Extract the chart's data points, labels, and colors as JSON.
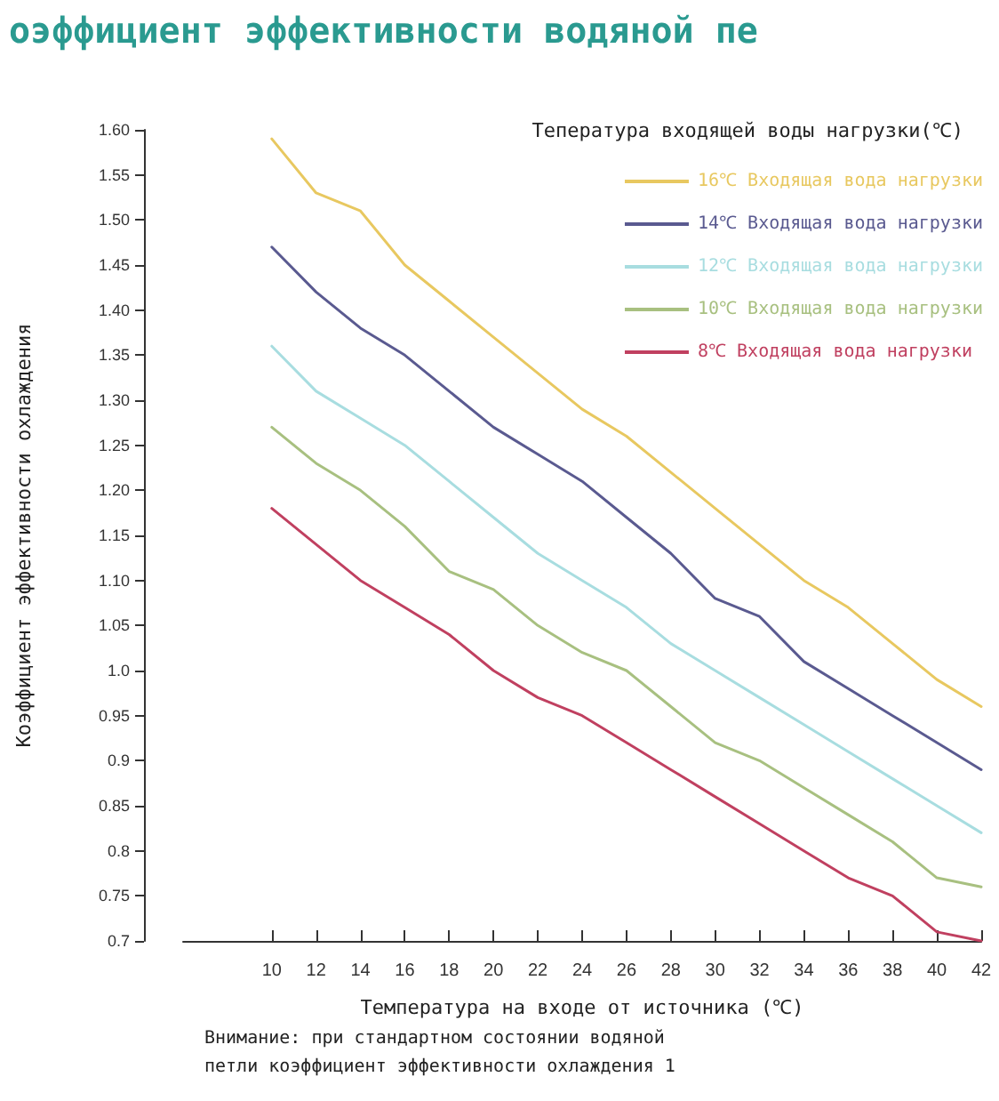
{
  "chart_data": {
    "type": "line",
    "title": "оэффициент эффективности водяной пе",
    "xlabel": "Температура на входе от источника (℃)",
    "ylabel": "Коэффициент эффективности охлаждения",
    "legend_title": "Тепература входящей воды нагрузки(℃)",
    "annotations": [
      "Внимание: при стандартном состоянии водяной петли коэффициент эффективности охлаждения 1"
    ],
    "x": [
      10,
      12,
      14,
      16,
      18,
      20,
      22,
      24,
      26,
      28,
      30,
      32,
      34,
      36,
      38,
      40,
      42
    ],
    "series": [
      {
        "name": "16℃ Входящая вода нагрузки",
        "color": "#e8c860",
        "values": [
          1.59,
          1.53,
          1.51,
          1.45,
          1.41,
          1.37,
          1.33,
          1.29,
          1.26,
          1.22,
          1.18,
          1.14,
          1.1,
          1.07,
          1.03,
          0.99,
          0.96
        ]
      },
      {
        "name": "14℃ Входящая вода нагрузки",
        "color": "#5a5a90",
        "values": [
          1.47,
          1.42,
          1.38,
          1.35,
          1.31,
          1.27,
          1.24,
          1.21,
          1.17,
          1.13,
          1.08,
          1.06,
          1.01,
          0.98,
          0.95,
          0.92,
          0.89
        ]
      },
      {
        "name": "12℃ Входящая вода нагрузки",
        "color": "#a8dde0",
        "values": [
          1.36,
          1.31,
          1.28,
          1.25,
          1.21,
          1.17,
          1.13,
          1.1,
          1.07,
          1.03,
          1.0,
          0.97,
          0.94,
          0.91,
          0.88,
          0.85,
          0.82
        ]
      },
      {
        "name": "10℃ Входящая вода нагрузки",
        "color": "#a8c080",
        "values": [
          1.27,
          1.23,
          1.2,
          1.16,
          1.11,
          1.09,
          1.05,
          1.02,
          1.0,
          0.96,
          0.92,
          0.9,
          0.87,
          0.84,
          0.81,
          0.77,
          0.76
        ]
      },
      {
        "name": "8℃ Входящая вода нагрузки",
        "color": "#c04060",
        "values": [
          1.18,
          1.14,
          1.1,
          1.07,
          1.04,
          1.0,
          0.97,
          0.95,
          0.92,
          0.89,
          0.86,
          0.83,
          0.8,
          0.77,
          0.75,
          0.71,
          0.7
        ]
      }
    ],
    "xlim": [
      6,
      42
    ],
    "xticks": [
      10,
      12,
      14,
      16,
      18,
      20,
      22,
      24,
      26,
      28,
      30,
      32,
      34,
      36,
      38,
      40,
      42
    ],
    "ylim": [
      0.7,
      1.6
    ],
    "yticks": [
      {
        "value": 1.6,
        "label": "1.60"
      },
      1.55,
      {
        "value": 1.5,
        "label": "1.50"
      },
      1.45,
      {
        "value": 1.4,
        "label": "1.40"
      },
      1.35,
      {
        "value": 1.3,
        "label": "1.30"
      },
      1.25,
      {
        "value": 1.2,
        "label": "1.20"
      },
      1.15,
      {
        "value": 1.1,
        "label": "1.10"
      },
      1.05,
      {
        "value": 1,
        "label": "1.0"
      },
      0.95,
      0.9,
      0.85,
      0.8,
      0.75,
      0.7
    ],
    "grid": false,
    "legend": "top right",
    "marker": "none",
    "line_style": "solid"
  }
}
